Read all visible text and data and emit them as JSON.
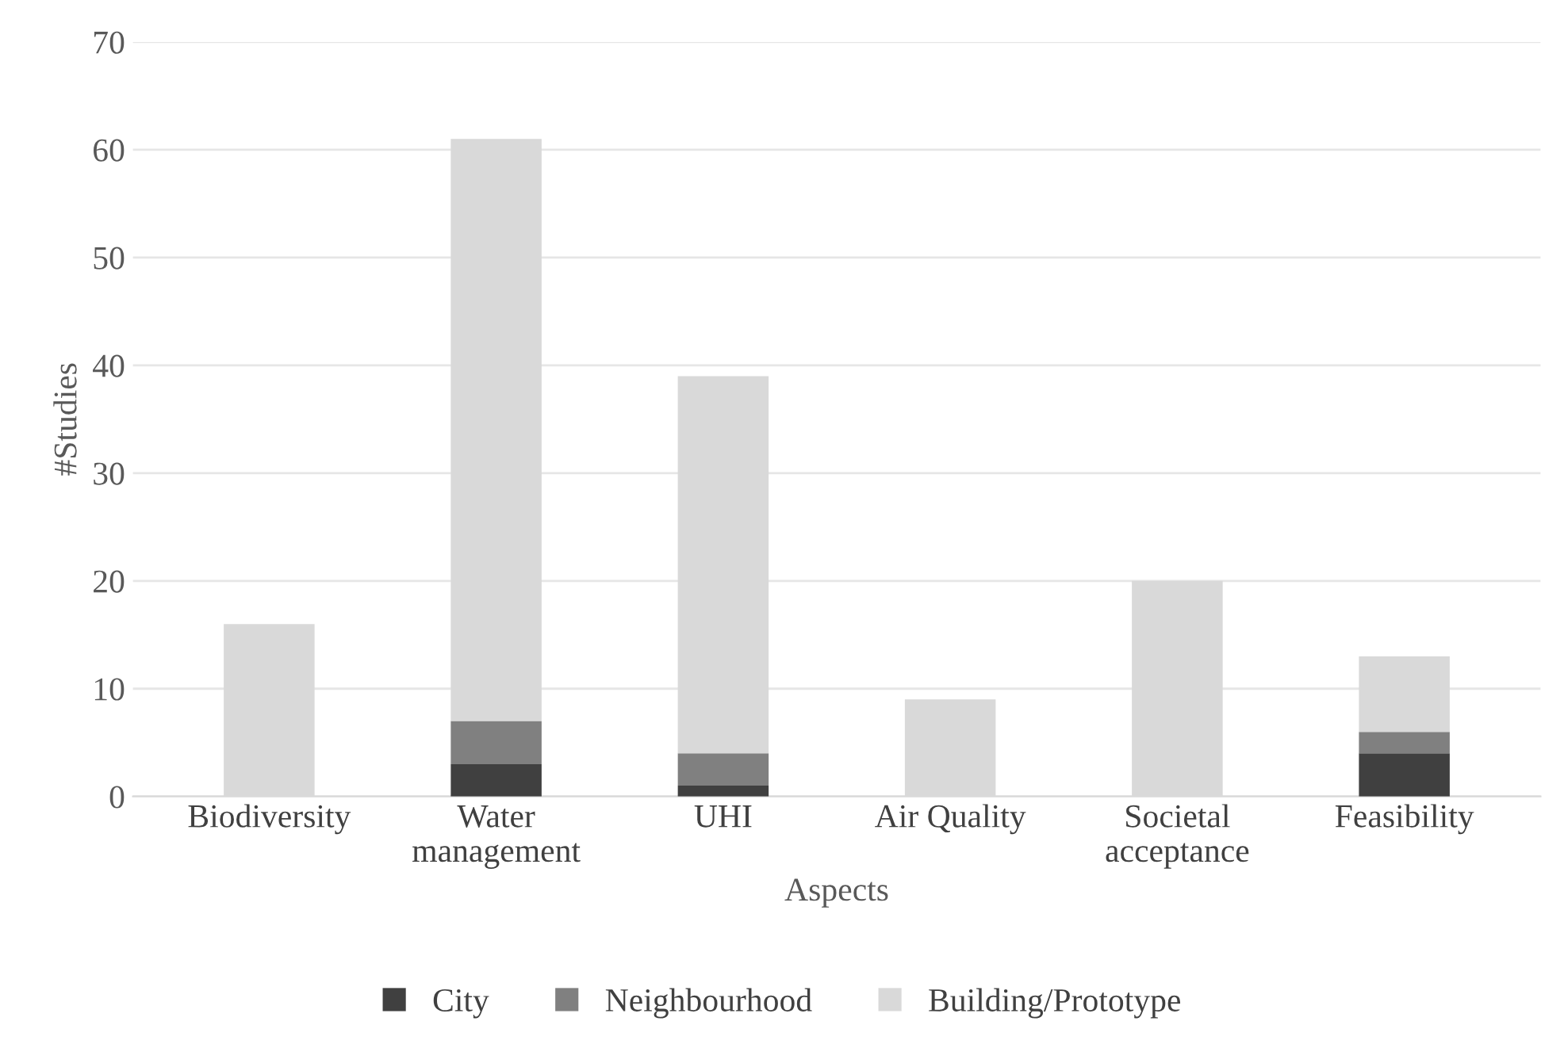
{
  "chart_data": {
    "type": "bar",
    "stacked": true,
    "xlabel": "Aspects",
    "ylabel": "#Studies",
    "categories": [
      "Biodiversity",
      "Water\nmanagement",
      "UHI",
      "Air Quality",
      "Societal\nacceptance",
      "Feasibility"
    ],
    "series": [
      {
        "name": "City",
        "color": "#404040",
        "values": [
          0,
          3,
          1,
          0,
          0,
          4
        ]
      },
      {
        "name": "Neighbourhood",
        "color": "#808080",
        "values": [
          0,
          4,
          3,
          0,
          0,
          2
        ]
      },
      {
        "name": "Building/Prototype",
        "color": "#d9d9d9",
        "values": [
          16,
          54,
          35,
          9,
          20,
          7
        ]
      }
    ],
    "ylim": [
      0,
      70
    ],
    "yticks": [
      0,
      10,
      20,
      30,
      40,
      50,
      60,
      70
    ],
    "grid": "y",
    "legend": "bottom"
  }
}
